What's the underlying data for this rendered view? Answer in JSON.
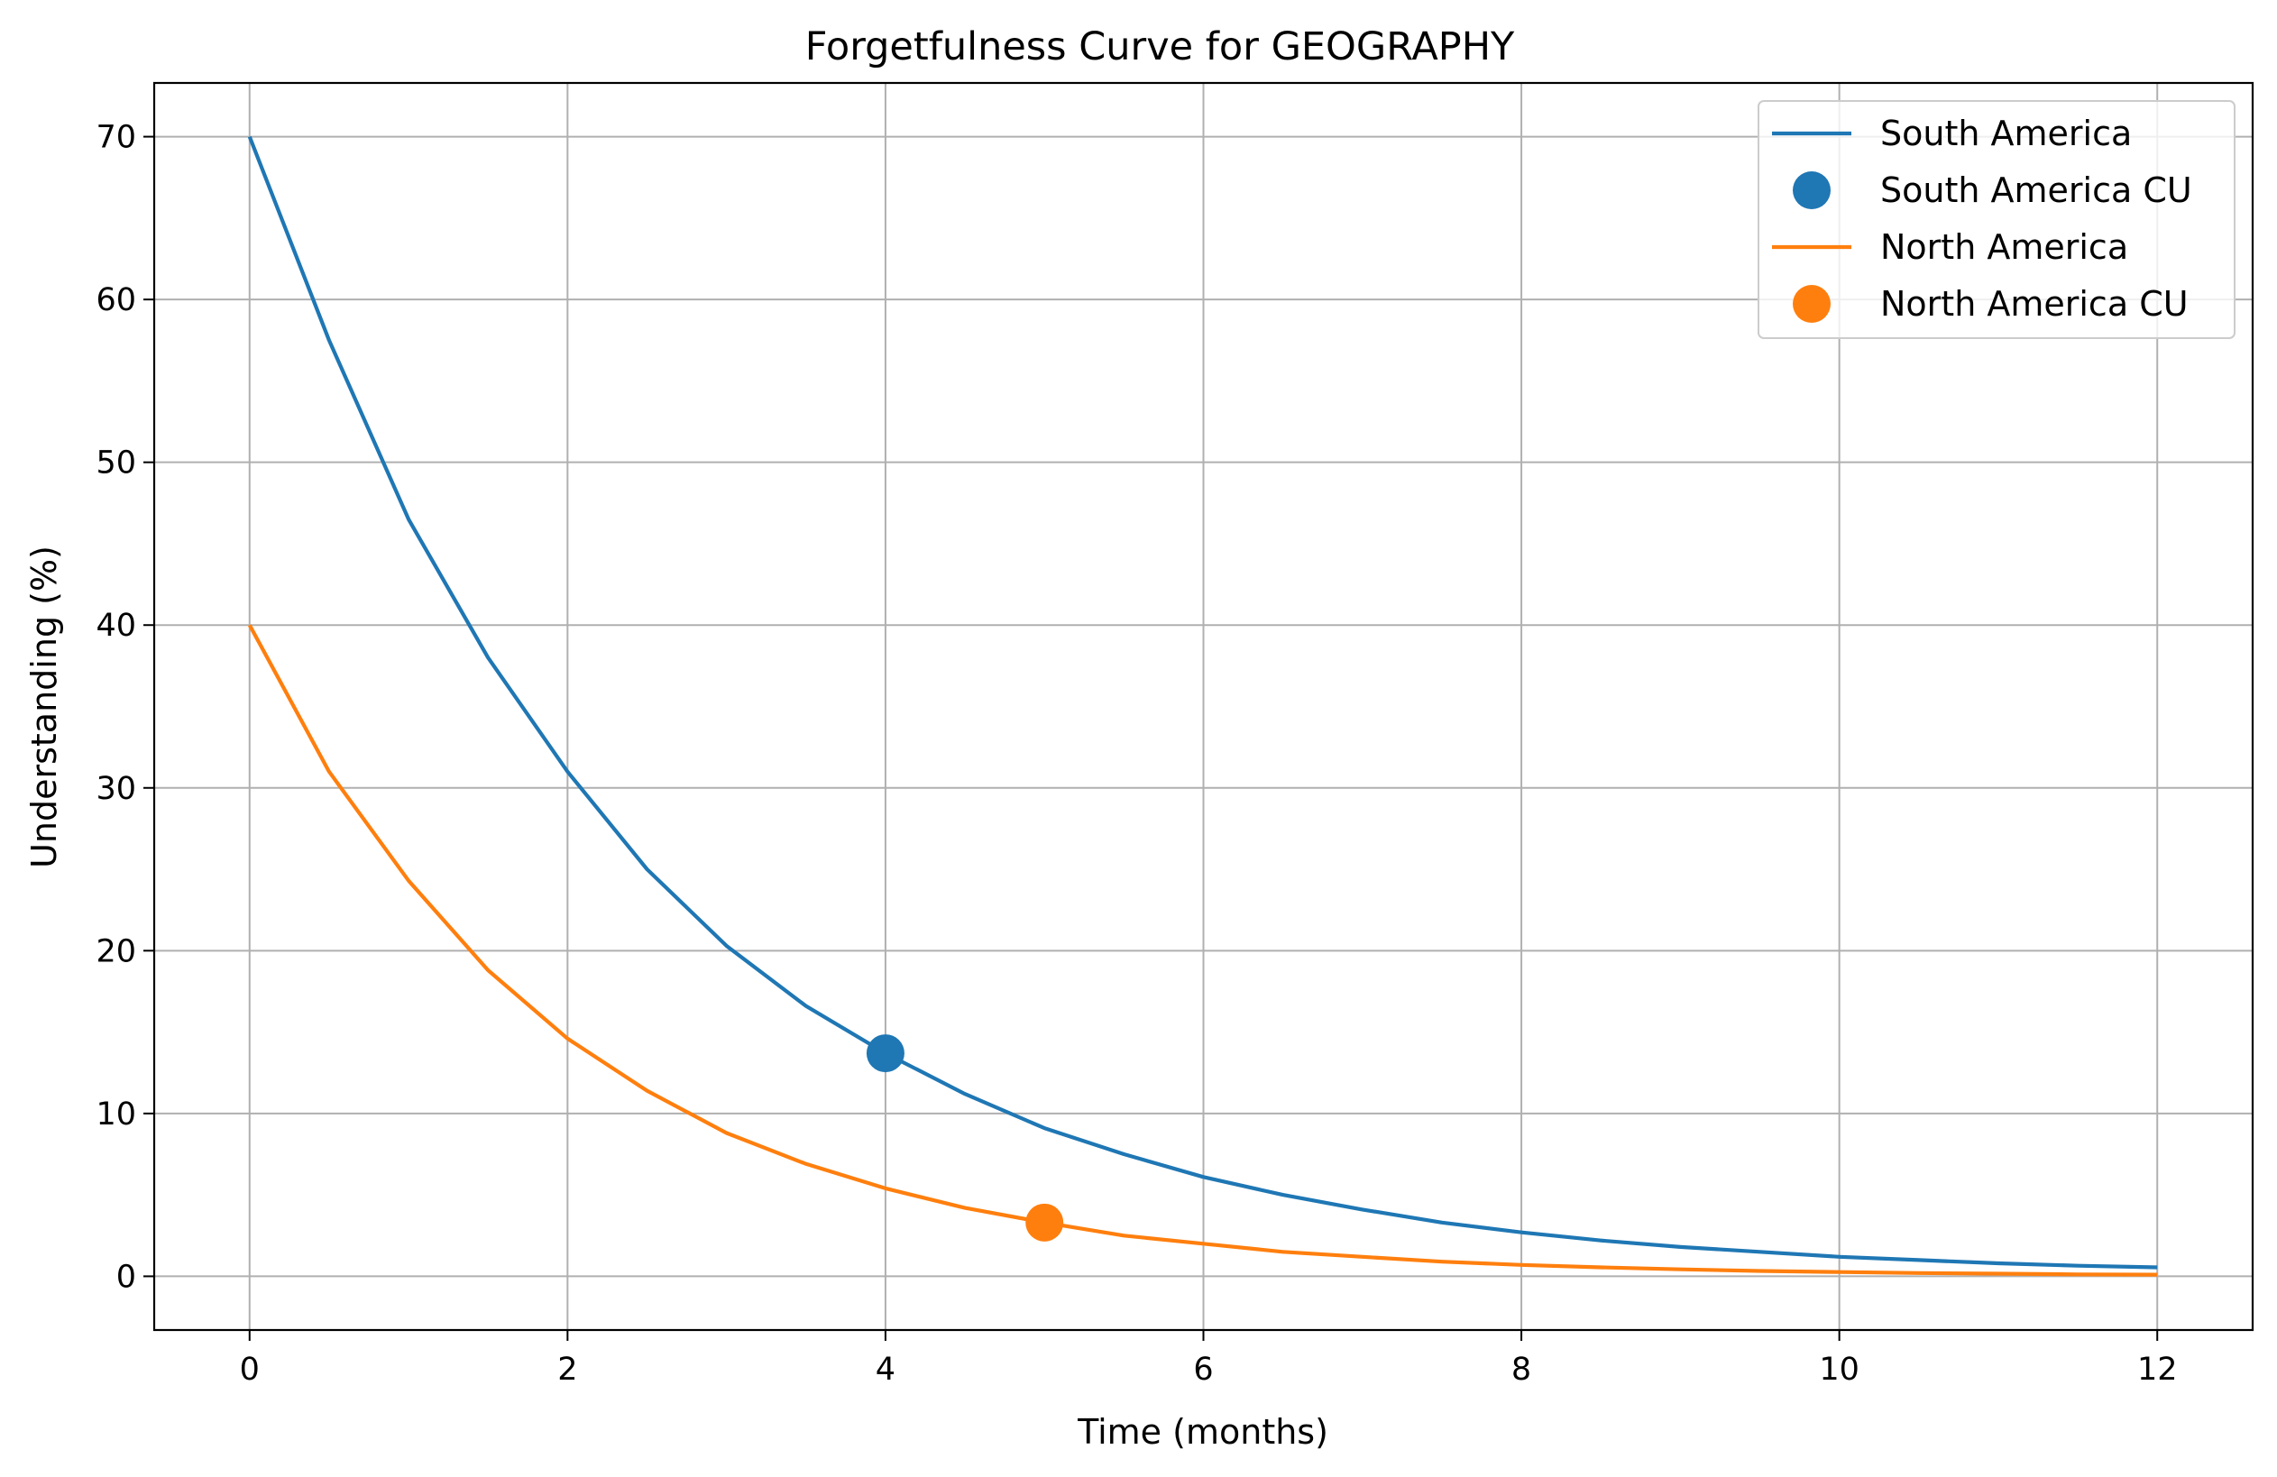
{
  "chart_data": {
    "type": "line",
    "title": "Forgetfulness Curve for GEOGRAPHY",
    "xlabel": "Time (months)",
    "ylabel": "Understanding (%)",
    "xlim": [
      -0.6,
      12.6
    ],
    "ylim": [
      -3.3,
      73.3
    ],
    "xticks": [
      0,
      2,
      4,
      6,
      8,
      10,
      12
    ],
    "yticks": [
      0,
      10,
      20,
      30,
      40,
      50,
      60,
      70
    ],
    "grid": true,
    "legend_position": "top-right",
    "series": [
      {
        "name": "South America",
        "kind": "line",
        "color": "#1f77b4",
        "x": [
          0,
          0.5,
          1,
          1.5,
          2,
          2.5,
          3,
          3.5,
          4,
          4.5,
          5,
          5.5,
          6,
          6.5,
          7,
          7.5,
          8,
          8.5,
          9,
          9.5,
          10,
          10.5,
          11,
          11.5,
          12
        ],
        "y": [
          70,
          57.5,
          46.5,
          38,
          31,
          25,
          20.3,
          16.6,
          13.7,
          11.2,
          9.1,
          7.5,
          6.1,
          5.0,
          4.1,
          3.3,
          2.7,
          2.2,
          1.8,
          1.5,
          1.2,
          1.0,
          0.8,
          0.65,
          0.55
        ]
      },
      {
        "name": "South America CU",
        "kind": "point",
        "color": "#1f77b4",
        "x": [
          4
        ],
        "y": [
          13.7
        ]
      },
      {
        "name": "North America",
        "kind": "line",
        "color": "#ff7f0e",
        "x": [
          0,
          0.5,
          1,
          1.5,
          2,
          2.5,
          3,
          3.5,
          4,
          4.5,
          5,
          5.5,
          6,
          6.5,
          7,
          7.5,
          8,
          8.5,
          9,
          9.5,
          10,
          10.5,
          11,
          11.5,
          12
        ],
        "y": [
          40,
          31,
          24.3,
          18.8,
          14.6,
          11.4,
          8.8,
          6.9,
          5.4,
          4.2,
          3.3,
          2.5,
          2.0,
          1.5,
          1.2,
          0.9,
          0.7,
          0.55,
          0.43,
          0.33,
          0.26,
          0.2,
          0.16,
          0.12,
          0.1
        ]
      },
      {
        "name": "North America CU",
        "kind": "point",
        "color": "#ff7f0e",
        "x": [
          5
        ],
        "y": [
          3.3
        ]
      }
    ]
  }
}
